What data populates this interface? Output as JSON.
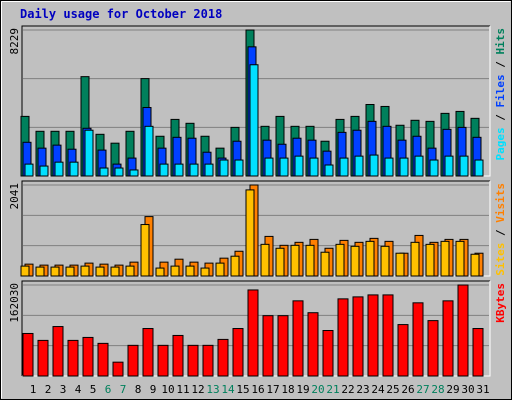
{
  "chart_data": [
    {
      "type": "bar",
      "title": "Daily usage for October 2018",
      "ylim": [
        0,
        8229
      ],
      "yticks": [
        {
          "value": 0,
          "label": null
        },
        {
          "value": 2743,
          "label": null
        },
        {
          "value": 5486,
          "label": null
        },
        8229
      ],
      "legend_separator": " / ",
      "series": [
        {
          "name": "Hits",
          "color": "#00805c",
          "values": [
            3360,
            2520,
            2520,
            2520,
            5600,
            2350,
            1850,
            2520,
            5490,
            2240,
            3190,
            2970,
            2240,
            1570,
            2740,
            8229,
            2800,
            3360,
            2800,
            2800,
            1960,
            3190,
            3360,
            4030,
            3920,
            2860,
            3140,
            3080,
            3530,
            3640,
            3250
          ]
        },
        {
          "name": "Files",
          "color": "#0040ff",
          "values": [
            1900,
            1570,
            1740,
            1510,
            2690,
            1460,
            670,
            1010,
            3860,
            1570,
            2180,
            2130,
            1340,
            1010,
            1960,
            7280,
            2020,
            1790,
            2130,
            2020,
            1400,
            2460,
            2580,
            3080,
            2800,
            2020,
            2240,
            1570,
            2630,
            2740,
            2180
          ]
        },
        {
          "name": "Pages",
          "color": "#00e0ff",
          "values": [
            670,
            560,
            780,
            780,
            2580,
            450,
            450,
            340,
            2800,
            670,
            670,
            670,
            670,
            900,
            900,
            6270,
            1010,
            1010,
            1120,
            1010,
            620,
            1010,
            1120,
            1180,
            1010,
            1010,
            1120,
            900,
            1120,
            1120,
            900
          ]
        }
      ]
    },
    {
      "type": "bar",
      "ylim": [
        0,
        2041
      ],
      "yticks": [
        {
          "value": 0,
          "label": null
        },
        {
          "value": 680.3,
          "label": null
        },
        {
          "value": 1360.7,
          "label": null
        },
        2041
      ],
      "legend_separator": " / ",
      "series": [
        {
          "name": "Visits",
          "color": "#ff8000",
          "values": [
            266,
            244,
            244,
            244,
            289,
            266,
            244,
            311,
            1332,
            311,
            377,
            311,
            289,
            400,
            555,
            2041,
            888,
            688,
            755,
            821,
            622,
            799,
            755,
            844,
            777,
            511,
            910,
            755,
            821,
            821,
            511
          ]
        },
        {
          "name": "Sites",
          "color": "#ffc000",
          "values": [
            222,
            200,
            200,
            200,
            222,
            200,
            200,
            222,
            1154,
            178,
            222,
            222,
            178,
            289,
            444,
            1931,
            710,
            622,
            688,
            688,
            533,
            710,
            666,
            777,
            666,
            511,
            755,
            710,
            777,
            777,
            488
          ]
        }
      ]
    },
    {
      "type": "bar",
      "ylim": [
        0,
        162030
      ],
      "yticks": [
        {
          "value": 0,
          "label": null
        },
        {
          "value": 54010,
          "label": null
        },
        {
          "value": 108020,
          "label": null
        },
        162030
      ],
      "categories": [
        "1",
        "2",
        "3",
        "4",
        "5",
        "6",
        "7",
        "8",
        "9",
        "10",
        "11",
        "12",
        "13",
        "14",
        "15",
        "16",
        "17",
        "18",
        "19",
        "20",
        "21",
        "22",
        "23",
        "24",
        "25",
        "26",
        "27",
        "28",
        "29",
        "30",
        "31"
      ],
      "category_colors": [
        "#000000",
        "#000000",
        "#000000",
        "#000000",
        "#000000",
        "#00805c",
        "#00805c",
        "#000000",
        "#000000",
        "#000000",
        "#000000",
        "#000000",
        "#00805c",
        "#00805c",
        "#000000",
        "#000000",
        "#000000",
        "#000000",
        "#000000",
        "#00805c",
        "#00805c",
        "#000000",
        "#000000",
        "#000000",
        "#000000",
        "#000000",
        "#00805c",
        "#00805c",
        "#000000",
        "#000000",
        "#000000"
      ],
      "series": [
        {
          "name": "KBytes",
          "color": "#ff0000",
          "values": [
            75720,
            63400,
            88050,
            63400,
            68680,
            58110,
            24650,
            54590,
            84530,
            54590,
            72200,
            54590,
            54590,
            65160,
            84530,
            153210,
            107420,
            107420,
            133840,
            112700,
            81010,
            137360,
            140880,
            144400,
            144400,
            91570,
            130310,
            98620,
            133840,
            162030,
            84530
          ]
        }
      ]
    }
  ]
}
